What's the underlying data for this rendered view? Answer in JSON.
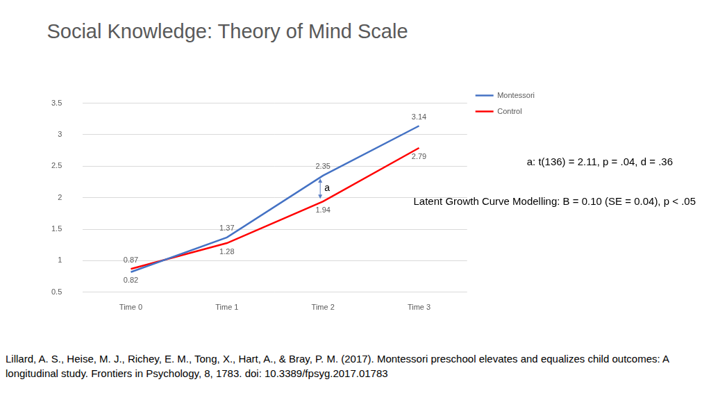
{
  "chart_data": {
    "type": "line",
    "title": "Social Knowledge: Theory of Mind Scale",
    "categories": [
      "Time 0",
      "Time 1",
      "Time 2",
      "Time 3"
    ],
    "series": [
      {
        "name": "Montessori",
        "color": "#4472C4",
        "values": [
          0.82,
          1.37,
          2.35,
          3.14
        ]
      },
      {
        "name": "Control",
        "color": "#FF0000",
        "values": [
          0.87,
          1.28,
          1.94,
          2.79
        ]
      }
    ],
    "ylim": [
      0.5,
      3.5
    ],
    "yticks": [
      0.5,
      1,
      1.5,
      2,
      2.5,
      3,
      3.5
    ],
    "grid": true,
    "legend": "right",
    "data_labels": true,
    "annotations": [
      {
        "text": "a",
        "x": "Time 2"
      }
    ],
    "notes": [
      "a: t(136) = 2.11, p = .04, d = .36",
      "Latent Growth Curve Modelling: B = 0.10 (SE = 0.04), p < .05"
    ],
    "source": "Lillard, A. S., Heise, M. J., Richey, E. M., Tong, X., Hart, A., & Bray, P. M. (2017). Montessori preschool elevates and equalizes child outcomes: A longitudinal study. Frontiers in Psychology, 8, 1783. doi: 10.3389/fpsyg.2017.01783"
  }
}
